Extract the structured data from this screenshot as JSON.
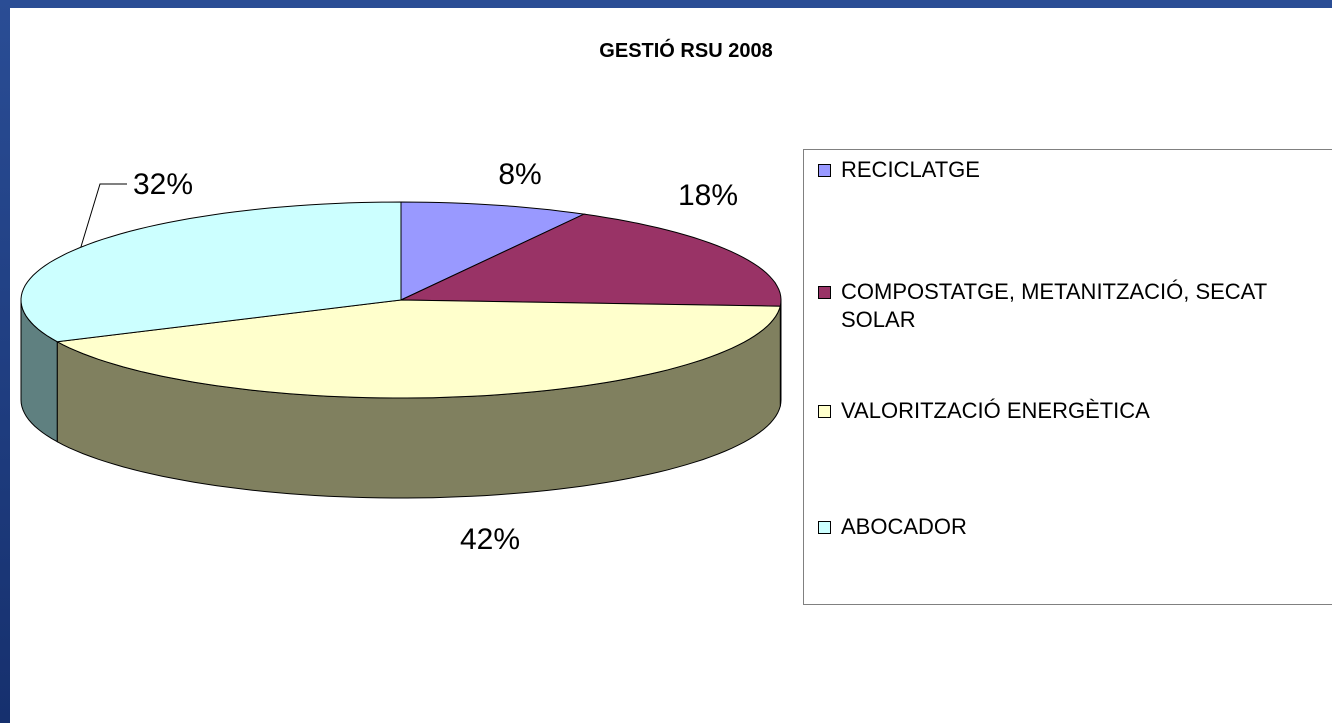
{
  "chart_data": {
    "type": "pie",
    "title": "GESTIÓ RSU 2008",
    "categories": [
      "RECICLATGE",
      "COMPOSTATGE, METANITZACIÓ, SECAT SOLAR",
      "VALORITZACIÓ ENERGÈTICA",
      "ABOCADOR"
    ],
    "values": [
      8,
      18,
      42,
      32
    ],
    "value_labels": [
      "8%",
      "18%",
      "42%",
      "32%"
    ],
    "colors": [
      "#9999ff",
      "#993366",
      "#ffffcc",
      "#ccffff"
    ],
    "side_colors": [
      "#6b6bb3",
      "#6b2447",
      "#80805f",
      "#5f8080"
    ],
    "legend": "right"
  }
}
